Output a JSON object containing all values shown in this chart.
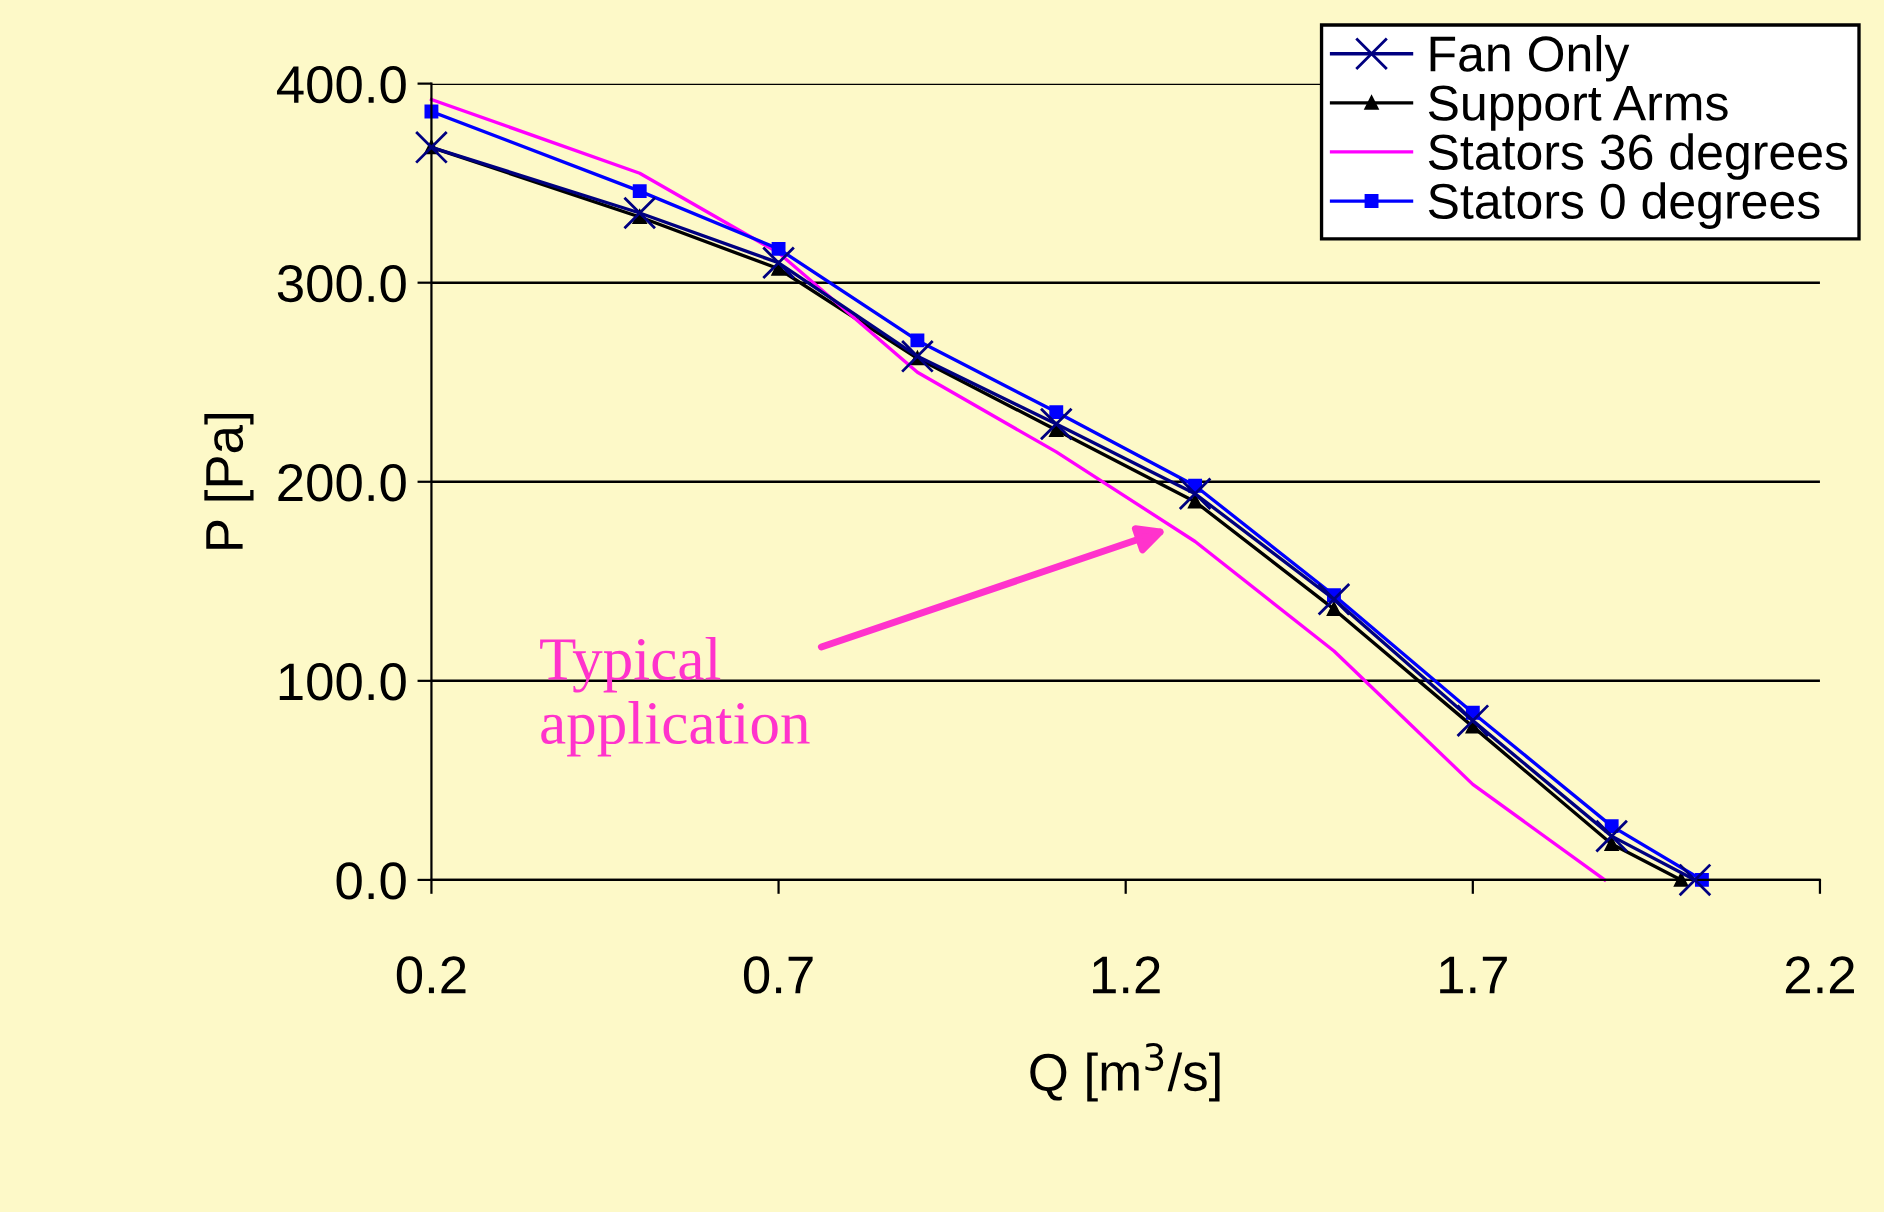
{
  "chart_data": {
    "type": "line",
    "xlabel": "Q [m$^{3}$/s]",
    "ylabel": "P [Pa]",
    "xlim": [
      0.2,
      2.2
    ],
    "xticks": [
      0.2,
      0.7,
      1.2,
      1.7,
      2.2
    ],
    "ylim": [
      0,
      400
    ],
    "yticks": [
      {
        "value": 0,
        "label": "0.0"
      },
      {
        "value": 100,
        "label": "100.0"
      },
      {
        "value": 200,
        "label": "200.0"
      },
      {
        "value": 300,
        "label": "300.0"
      },
      {
        "value": 400,
        "label": "400.0"
      }
    ],
    "grid": "y",
    "legend": "top right",
    "line_style": "solid",
    "series": [
      {
        "name": "Fan Only",
        "color": "#000080",
        "marker": "cross",
        "x": [
          0.2,
          0.5,
          0.7,
          0.9,
          1.1,
          1.3,
          1.5,
          1.7,
          1.9,
          2.02
        ],
        "values": [
          368,
          335,
          310,
          263,
          229,
          194,
          141,
          80,
          22,
          0
        ]
      },
      {
        "name": "Support Arms",
        "color": "#000000",
        "marker": "triangle",
        "x": [
          0.2,
          0.5,
          0.7,
          0.9,
          1.1,
          1.3,
          1.5,
          1.7,
          1.9,
          2.0
        ],
        "values": [
          368,
          333,
          307,
          262,
          226,
          190,
          136,
          77,
          18,
          0
        ]
      },
      {
        "name": "Stators 36 degrees",
        "color": "#ff00ff",
        "marker": "none",
        "x": [
          0.2,
          0.5,
          0.7,
          0.9,
          1.1,
          1.3,
          1.5,
          1.7,
          1.89
        ],
        "values": [
          392,
          355,
          315,
          255,
          215,
          170,
          115,
          48,
          0
        ]
      },
      {
        "name": "Stators 0 degrees",
        "color": "#0000ff",
        "marker": "square",
        "x": [
          0.2,
          0.5,
          0.7,
          0.9,
          1.1,
          1.3,
          1.5,
          1.7,
          1.9,
          2.03
        ],
        "values": [
          386,
          346,
          317,
          271,
          235,
          198,
          143,
          84,
          27,
          0
        ]
      }
    ],
    "annotations": [
      {
        "text": "Typical\napplication",
        "x": 1.26,
        "y": 176
      }
    ]
  }
}
